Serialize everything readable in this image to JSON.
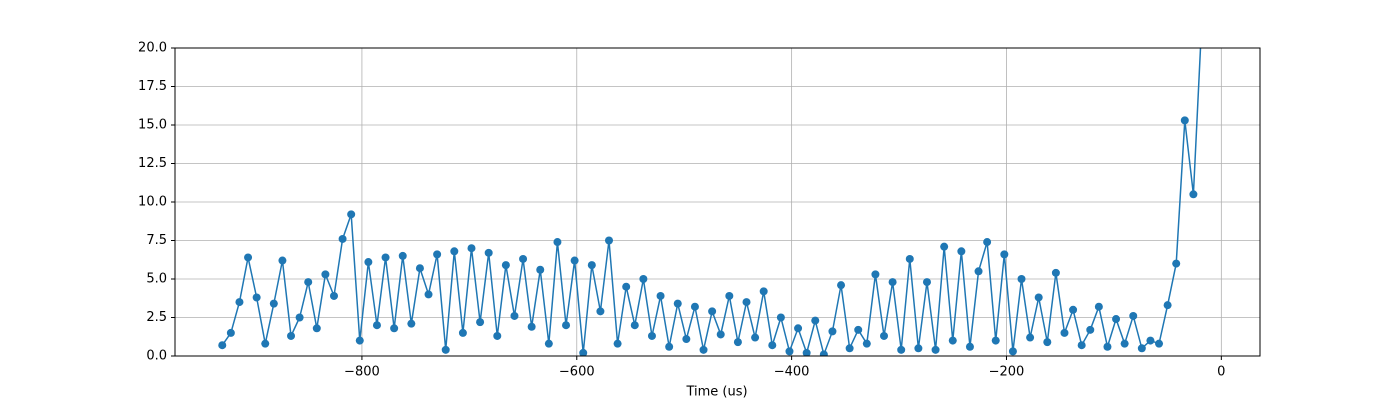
{
  "chart_data": {
    "type": "line",
    "x_label": "Time (us)",
    "x": [
      -930,
      -922,
      -914,
      -906,
      -898,
      -890,
      -882,
      -874,
      -866,
      -858,
      -850,
      -842,
      -834,
      -826,
      -818,
      -810,
      -802,
      -794,
      -786,
      -778,
      -770,
      -762,
      -754,
      -746,
      -738,
      -730,
      -722,
      -714,
      -706,
      -698,
      -690,
      -682,
      -674,
      -666,
      -658,
      -650,
      -642,
      -634,
      -626,
      -618,
      -610,
      -602,
      -594,
      -586,
      -578,
      -570,
      -562,
      -554,
      -546,
      -538,
      -530,
      -522,
      -514,
      -506,
      -498,
      -490,
      -482,
      -474,
      -466,
      -458,
      -450,
      -442,
      -434,
      -426,
      -418,
      -410,
      -402,
      -394,
      -386,
      -378,
      -370,
      -362,
      -354,
      -346,
      -338,
      -330,
      -322,
      -314,
      -306,
      -298,
      -290,
      -282,
      -274,
      -266,
      -258,
      -250,
      -242,
      -234,
      -226,
      -218,
      -210,
      -202,
      -194,
      -186,
      -178,
      -170,
      -162,
      -154,
      -146,
      -138,
      -130,
      -122,
      -114,
      -106,
      -98,
      -90,
      -82,
      -74,
      -66,
      -58,
      -50,
      -42,
      -34,
      -26,
      -18
    ],
    "series": [
      {
        "color": "#1f77b4",
        "values": [
          0.7,
          1.5,
          3.5,
          6.4,
          3.8,
          0.8,
          3.4,
          6.2,
          1.3,
          2.5,
          4.8,
          1.8,
          5.3,
          3.9,
          7.6,
          9.2,
          1.0,
          6.1,
          2.0,
          6.4,
          1.8,
          6.5,
          2.1,
          5.7,
          4.0,
          6.6,
          0.4,
          6.8,
          1.5,
          7.0,
          2.2,
          6.7,
          1.3,
          5.9,
          2.6,
          6.3,
          1.9,
          5.6,
          0.8,
          7.4,
          2.0,
          6.2,
          0.2,
          5.9,
          2.9,
          7.5,
          0.8,
          4.5,
          2.0,
          5.0,
          1.3,
          3.9,
          0.6,
          3.4,
          1.1,
          3.2,
          0.4,
          2.9,
          1.4,
          3.9,
          0.9,
          3.5,
          1.2,
          4.2,
          0.7,
          2.5,
          0.3,
          1.8,
          0.2,
          2.3,
          0.1,
          1.6,
          4.6,
          0.5,
          1.7,
          0.8,
          5.3,
          1.3,
          4.8,
          0.4,
          6.3,
          0.5,
          4.8,
          0.4,
          7.1,
          1.0,
          6.8,
          0.6,
          5.5,
          7.4,
          1.0,
          6.6,
          0.3,
          5.0,
          1.2,
          3.8,
          0.9,
          5.4,
          1.5,
          3.0,
          0.7,
          1.7,
          3.2,
          0.6,
          2.4,
          0.8,
          2.6,
          0.5,
          1.0,
          0.8,
          3.3,
          6.0,
          15.3,
          10.5,
          22.0
        ]
      }
    ],
    "xlim": [
      -974,
      36
    ],
    "ylim": [
      0,
      20
    ],
    "xticks": [
      {
        "value": -800,
        "label": "−800"
      },
      {
        "value": -600,
        "label": "−600"
      },
      {
        "value": -400,
        "label": "−400"
      },
      {
        "value": -200,
        "label": "−200"
      },
      0
    ],
    "yticks": [
      {
        "value": 0,
        "label": "0.0"
      },
      {
        "value": 2.5,
        "label": "2.5"
      },
      {
        "value": 5,
        "label": "5.0"
      },
      {
        "value": 7.5,
        "label": "7.5"
      },
      {
        "value": 10,
        "label": "10.0"
      },
      {
        "value": 12.5,
        "label": "12.5"
      },
      {
        "value": 15,
        "label": "15.0"
      },
      {
        "value": 17.5,
        "label": "17.5"
      },
      {
        "value": 20,
        "label": "20.0"
      }
    ],
    "grid": true
  }
}
